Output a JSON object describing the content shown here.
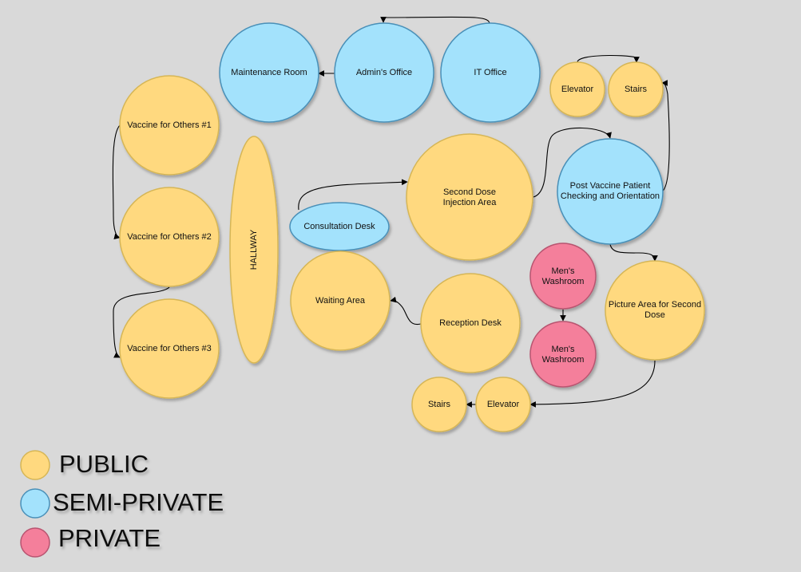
{
  "colors": {
    "public": "#ffd97f",
    "semi_private": "#a3e2fc",
    "private": "#f47f9b",
    "background": "#d9d9d9"
  },
  "nodes": {
    "maintenance_room": "Maintenance Room",
    "admins_office": "Admin's Office",
    "it_office": "IT Office",
    "elevator_top": "Elevator",
    "stairs_top": "Stairs",
    "vaccine_others_1": "Vaccine for Others #1",
    "vaccine_others_2": "Vaccine for Others #2",
    "vaccine_others_3": "Vaccine for Others #3",
    "hallway": "HALLWAY",
    "consultation_desk": "Consultation Desk",
    "second_dose_line1": "Second Dose",
    "second_dose_line2": "Injection Area",
    "post_vaccine_line1": "Post Vaccine Patient",
    "post_vaccine_line2": "Checking and Orientation",
    "waiting_area": "Waiting Area",
    "reception_desk": "Reception Desk",
    "mens_washroom_1_line1": "Men's",
    "mens_washroom_1_line2": "Washroom",
    "mens_washroom_2_line1": "Men's",
    "mens_washroom_2_line2": "Washroom",
    "picture_area_line1": "Picture Area for Second",
    "picture_area_line2": "Dose",
    "stairs_bottom": "Stairs",
    "elevator_bottom": "Elevator"
  },
  "legend": {
    "public": "PUBLIC",
    "semi_private": "SEMI-PRIVATE",
    "private": "PRIVATE"
  }
}
